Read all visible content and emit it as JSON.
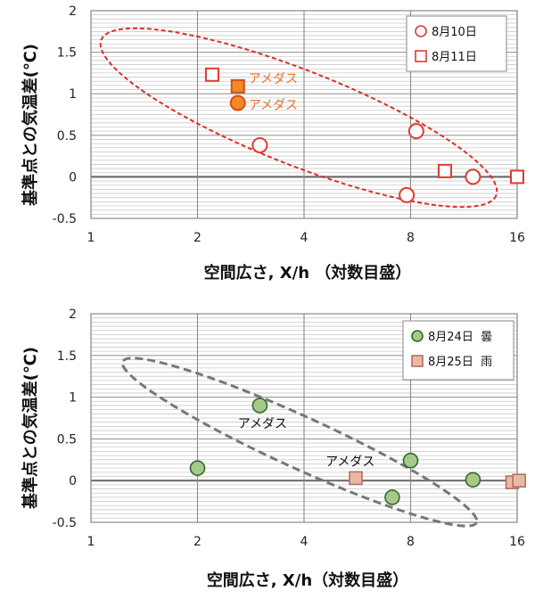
{
  "chart_data": [
    {
      "type": "scatter",
      "xscale": "log2",
      "xlim": [
        1,
        16
      ],
      "ylim": [
        -0.5,
        2
      ],
      "xticks": [
        "1",
        "2",
        "4",
        "8",
        "16"
      ],
      "yticks": [
        "-0.5",
        "0",
        "0.5",
        "1",
        "1.5",
        "2"
      ],
      "xlabel": "空間広さ,  X/h  （対数目盛）",
      "ylabel": "基準点との気温差(℃)",
      "grid": true,
      "legend": "top-right",
      "series": [
        {
          "name": "8月10日",
          "marker": "circle",
          "color": "#e03a2e",
          "x": [
            3.0,
            7.8,
            8.3,
            12.0
          ],
          "y": [
            0.38,
            -0.22,
            0.55,
            0.0
          ]
        },
        {
          "name": "8月11日",
          "marker": "square",
          "color": "#e03a2e",
          "x": [
            2.2,
            10.0,
            16.0
          ],
          "y": [
            1.23,
            0.07,
            0.0
          ]
        }
      ],
      "amedas": [
        {
          "label": "アメダス",
          "marker": "square",
          "x": 2.6,
          "y": 1.09,
          "fill": "#f08a24",
          "stroke": "#d94b1a"
        },
        {
          "label": "アメダス",
          "marker": "circle",
          "x": 2.6,
          "y": 0.89,
          "fill": "#f08a24",
          "stroke": "#d94b1a"
        }
      ],
      "annotation_color": "#e8742a",
      "ellipse_color": "#d9302a"
    },
    {
      "type": "scatter",
      "xscale": "log2",
      "xlim": [
        1,
        16
      ],
      "ylim": [
        -0.5,
        2
      ],
      "xticks": [
        "1",
        "2",
        "4",
        "8",
        "16"
      ],
      "yticks": [
        "-0.5",
        "0",
        "0.5",
        "1",
        "1.5",
        "2"
      ],
      "xlabel": "空間広さ, X/h（対数目盛）",
      "ylabel": "基準点との気温差(℃)",
      "grid": true,
      "legend": "top-right",
      "series": [
        {
          "name": "8月24日  曇",
          "marker": "circle",
          "color": "#2f6b2a",
          "fill": "#a6c98a",
          "x": [
            2.0,
            3.0,
            7.1,
            8.0,
            12.0
          ],
          "y": [
            0.15,
            0.9,
            -0.2,
            0.24,
            0.01
          ]
        },
        {
          "name": "8月25日  雨",
          "marker": "square",
          "color": "#b07060",
          "fill": "#e9b9a6",
          "x": [
            5.6,
            15.5,
            16.2
          ],
          "y": [
            0.03,
            -0.02,
            0.0
          ]
        }
      ],
      "annotations": [
        {
          "text": "アメダス",
          "x": 2.6,
          "y": 0.63
        },
        {
          "text": "アメダス",
          "x": 4.6,
          "y": 0.18
        }
      ],
      "annotation_color": "#111111",
      "ellipse_color": "#777777"
    }
  ]
}
